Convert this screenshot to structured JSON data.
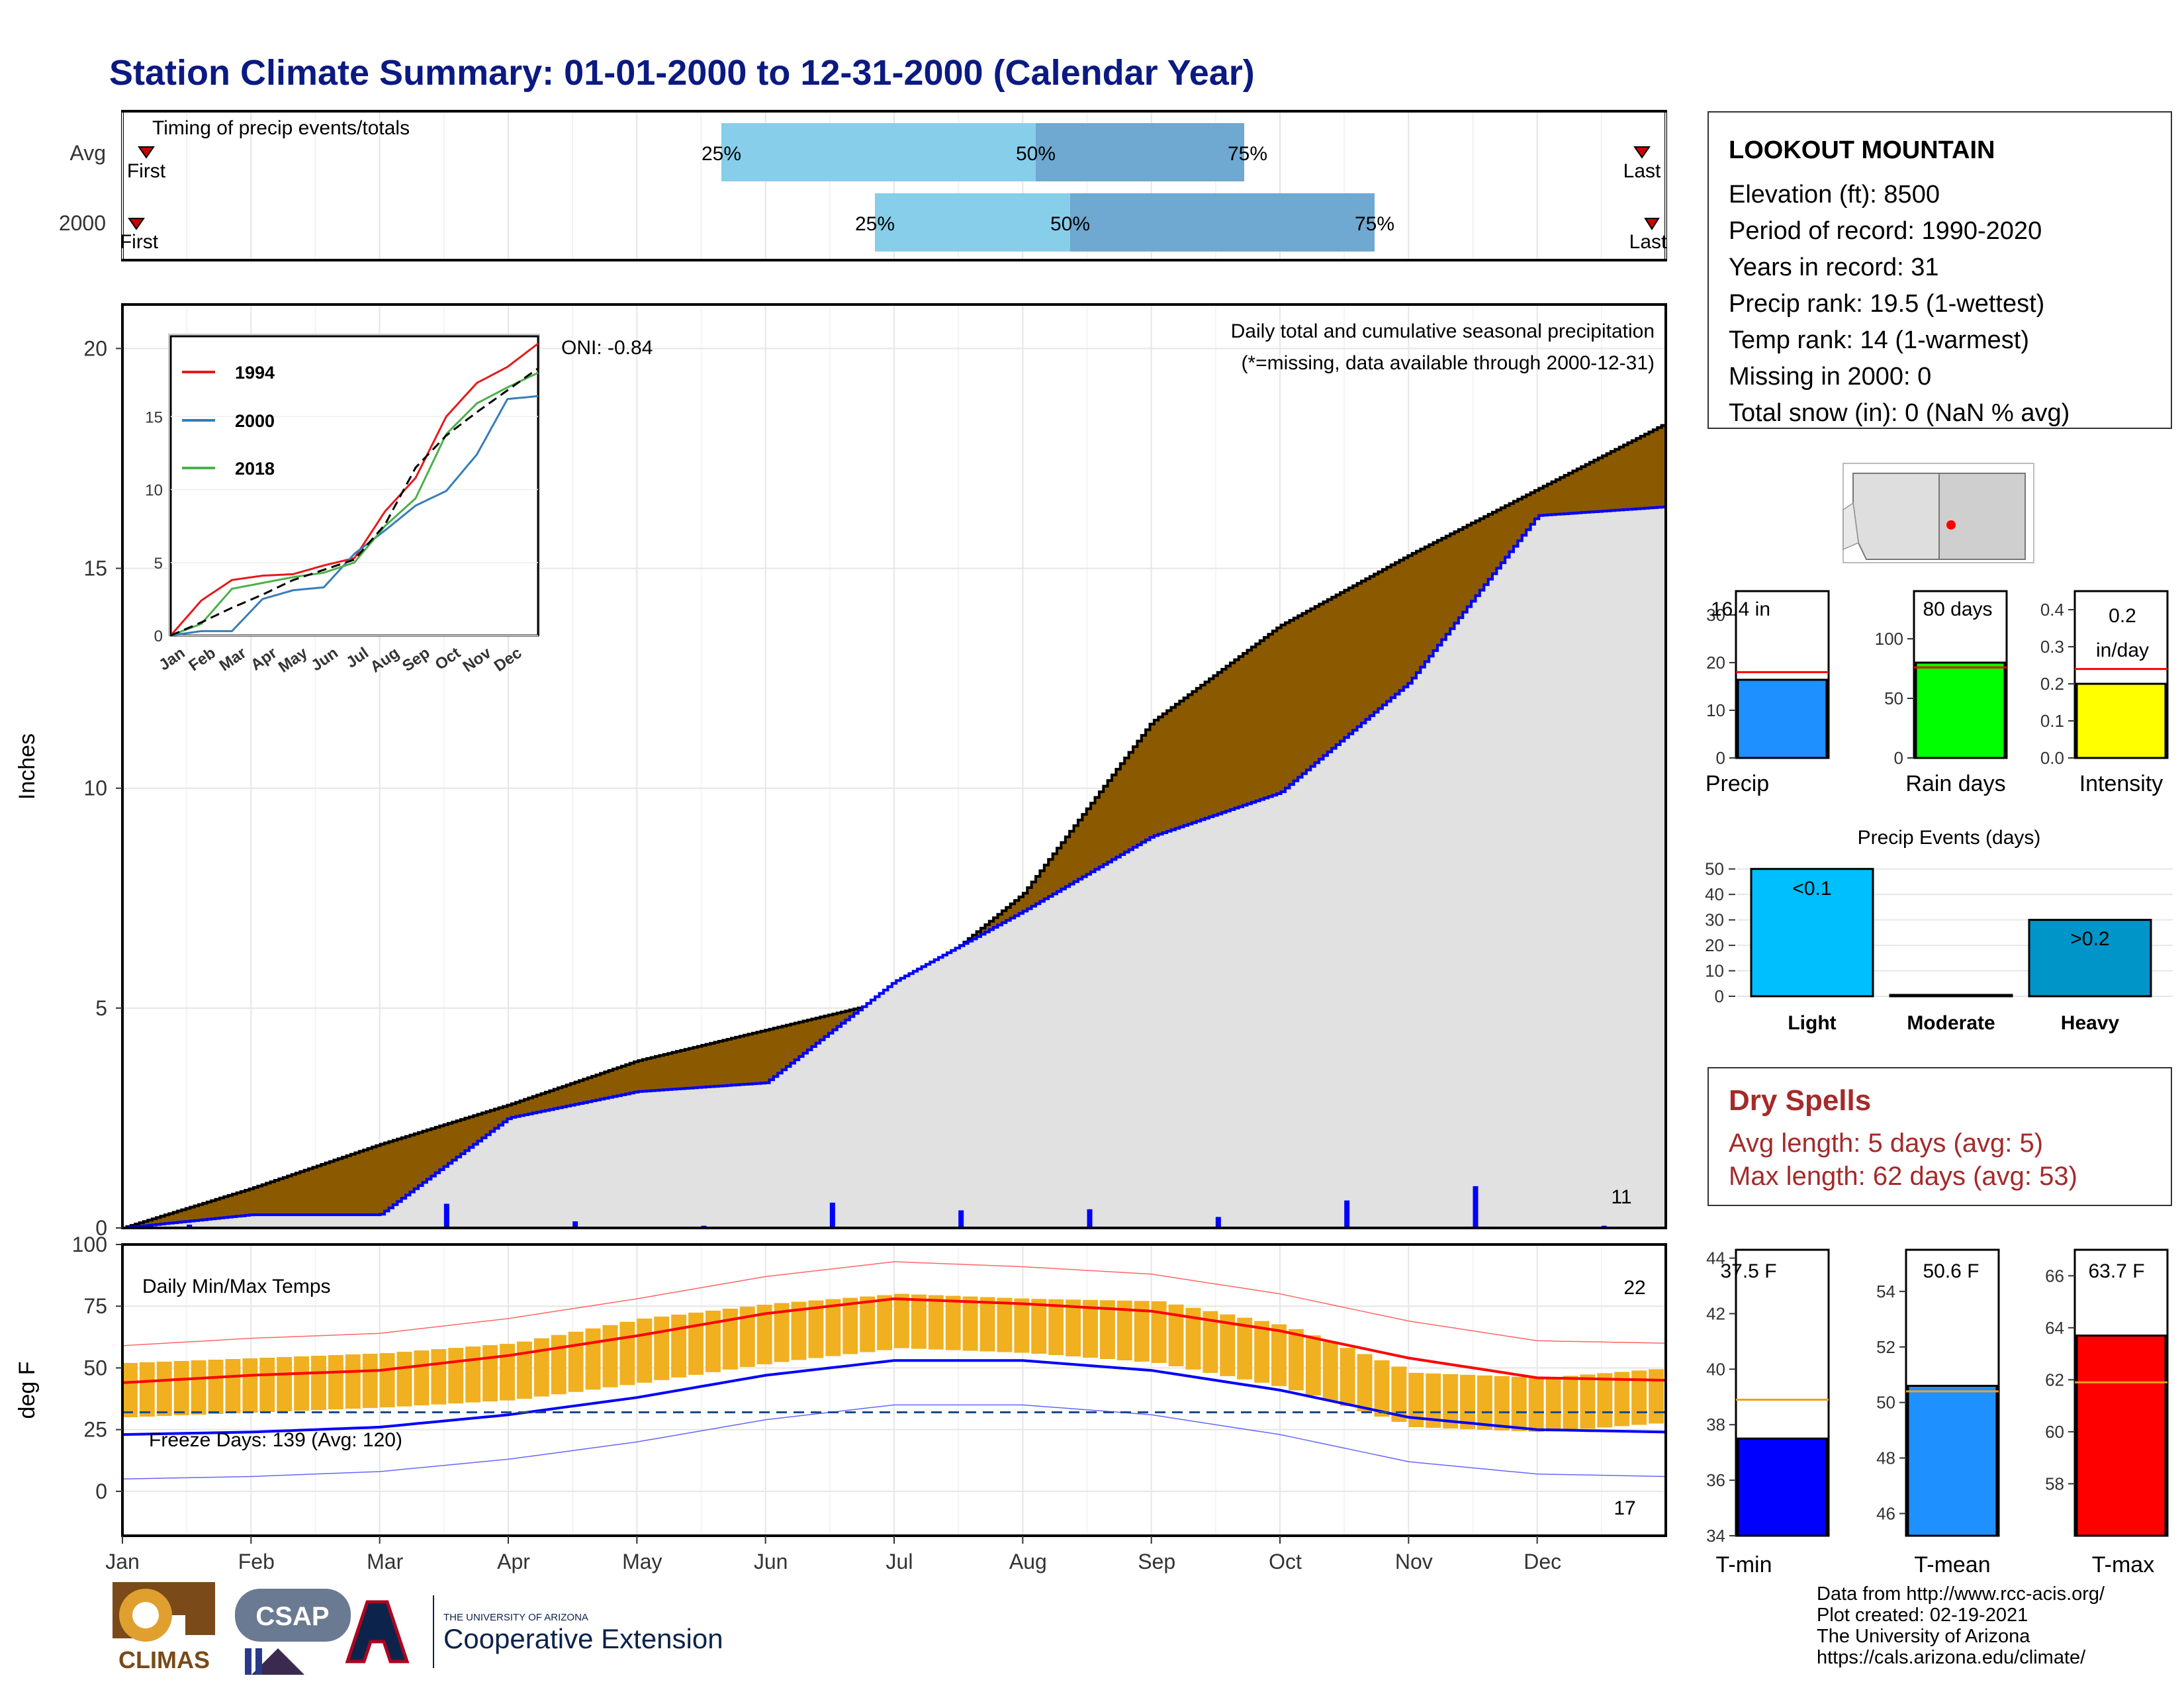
{
  "title": "Station Climate Summary: 01-01-2000 to 12-31-2000 (Calendar Year)",
  "colors": {
    "title": "#0b1a82",
    "brown": "#8b5a00",
    "blue": "#0000ff",
    "gray_fill": "#e1e1e1",
    "orange": "#f0b020",
    "red": "#ff0000",
    "light_blue": "#87ceeb",
    "mid_blue": "#6fa8d0"
  },
  "timing": {
    "label": "Timing of precip events/totals",
    "rows": [
      {
        "name": "Avg",
        "first": "First",
        "last": "Last",
        "p25": "25%",
        "p50": "50%",
        "p75": "75%"
      },
      {
        "name": "2000",
        "first": "First",
        "last": "Last",
        "p25": "25%",
        "p50": "50%",
        "p75": "75%"
      }
    ]
  },
  "station": {
    "name": "LOOKOUT MOUNTAIN",
    "lines": [
      "Elevation (ft): 8500",
      "Period of record: 1990-2020",
      "Years in record: 31",
      "Precip rank: 19.5 (1-wettest)",
      "Temp rank: 14 (1-warmest)",
      "Missing in 2000: 0",
      "Total snow (in): 0 (NaN % avg)"
    ]
  },
  "precip_panel": {
    "ylabel": "Inches",
    "title": "Daily total and cumulative seasonal precipitation",
    "subtitle": "(*=missing, data available through 2000-12-31)",
    "oni": "ONI: -0.84",
    "count_label": "11",
    "yticks": [
      "0",
      "5",
      "10",
      "15",
      "20"
    ]
  },
  "temp_panel": {
    "ylabel": "deg F",
    "title": "Daily Min/Max Temps",
    "freeze": "Freeze Days: 139 (Avg: 120)",
    "hot_count": "22",
    "cold_count": "17",
    "yticks": [
      "0",
      "25",
      "50",
      "75",
      "100"
    ],
    "months": [
      "Jan",
      "Feb",
      "Mar",
      "Apr",
      "May",
      "Jun",
      "Jul",
      "Aug",
      "Sep",
      "Oct",
      "Nov",
      "Dec"
    ]
  },
  "inset": {
    "legend": [
      "1994",
      "2000",
      "2018"
    ],
    "yticks": [
      "0",
      "5",
      "10",
      "15"
    ],
    "months": [
      "Jan",
      "Feb",
      "Mar",
      "Apr",
      "May",
      "Jun",
      "Jul",
      "Aug",
      "Sep",
      "Oct",
      "Nov",
      "Dec"
    ]
  },
  "mini_bars": {
    "precip": {
      "label": "Precip",
      "value_label": "16.4 in",
      "yticks": [
        "0",
        "10",
        "20",
        "30"
      ]
    },
    "rain_days": {
      "label": "Rain days",
      "value_label": "80 days",
      "yticks": [
        "0",
        "50",
        "100"
      ]
    },
    "intensity": {
      "label": "Intensity",
      "value_label_1": "0.2",
      "value_label_2": "in/day",
      "yticks": [
        "0.0",
        "0.1",
        "0.2",
        "0.3",
        "0.4"
      ]
    }
  },
  "events": {
    "title": "Precip Events (days)",
    "categories": [
      "Light",
      "Moderate",
      "Heavy"
    ],
    "labels": [
      "<0.1",
      "",
      ">0.2"
    ],
    "yticks": [
      "0",
      "10",
      "20",
      "30",
      "40",
      "50"
    ]
  },
  "dry_spells": {
    "title": "Dry Spells",
    "avg": "Avg length: 5 days (avg: 5)",
    "max": "Max length: 62 days (avg: 53)"
  },
  "temp_bars": {
    "tmin": {
      "label": "T-min",
      "value_label": "37.5 F",
      "yticks": [
        "34",
        "36",
        "38",
        "40",
        "42",
        "44"
      ]
    },
    "tmean": {
      "label": "T-mean",
      "value_label": "50.6 F",
      "yticks": [
        "46",
        "48",
        "50",
        "52",
        "54"
      ]
    },
    "tmax": {
      "label": "T-max",
      "value_label": "63.7 F",
      "yticks": [
        "58",
        "60",
        "62",
        "64",
        "66"
      ]
    }
  },
  "credits": [
    "Data from http://www.rcc-acis.org/",
    "Plot created: 02-19-2021",
    "The University of Arizona",
    "https://cals.arizona.edu/climate/"
  ],
  "logos": {
    "climas": "CLIMAS",
    "csap": "CSAP",
    "ua_small": "THE UNIVERSITY OF ARIZONA",
    "ua_big": "Cooperative Extension"
  },
  "chart_data": [
    {
      "type": "area",
      "title": "Daily total and cumulative seasonal precipitation",
      "ylabel": "Inches",
      "ylim": [
        0,
        21
      ],
      "x": [
        "Jan",
        "Feb",
        "Mar",
        "Apr",
        "May",
        "Jun",
        "Jul",
        "Aug",
        "Sep",
        "Oct",
        "Nov",
        "Dec",
        "Dec-31"
      ],
      "series": [
        {
          "name": "Avg",
          "values": [
            0,
            0.9,
            1.9,
            2.8,
            3.8,
            4.5,
            5.2,
            7.6,
            11.5,
            13.7,
            15.3,
            16.8,
            18.3
          ]
        },
        {
          "name": "2000",
          "values": [
            0,
            0.3,
            0.3,
            2.5,
            3.1,
            3.3,
            5.6,
            7.2,
            8.9,
            9.9,
            12.4,
            16.2,
            16.4
          ]
        }
      ]
    },
    {
      "type": "line",
      "title": "Daily Min/Max Temps",
      "ylabel": "deg F",
      "ylim": [
        -18,
        100
      ],
      "x": [
        "Jan",
        "Feb",
        "Mar",
        "Apr",
        "May",
        "Jun",
        "Jul",
        "Aug",
        "Sep",
        "Oct",
        "Nov",
        "Dec",
        "Dec-31"
      ],
      "series": [
        {
          "name": "Avg max",
          "values": [
            44,
            47,
            49,
            55,
            63,
            72,
            78,
            76,
            73,
            65,
            54,
            46,
            45
          ]
        },
        {
          "name": "Avg min",
          "values": [
            23,
            24,
            26,
            31,
            38,
            47,
            53,
            53,
            49,
            41,
            30,
            25,
            24
          ]
        },
        {
          "name": "2000 max",
          "values": [
            48,
            50,
            52,
            56,
            66,
            72,
            76,
            74,
            73,
            63,
            44,
            42,
            46
          ]
        },
        {
          "name": "2000 min",
          "values": [
            26,
            28,
            30,
            33,
            40,
            48,
            54,
            52,
            48,
            38,
            22,
            20,
            24
          ]
        }
      ]
    },
    {
      "type": "line",
      "x": [
        "Jan",
        "Feb",
        "Mar",
        "Apr",
        "May",
        "Jun",
        "Jul",
        "Aug",
        "Sep",
        "Oct",
        "Nov",
        "Dec",
        "Dec-31"
      ],
      "ylim": [
        0,
        20
      ],
      "series": [
        {
          "name": "1994",
          "values": [
            0,
            2.4,
            3.8,
            4.1,
            4.2,
            4.8,
            5.3,
            8.5,
            10.8,
            15.0,
            17.3,
            18.4,
            20
          ]
        },
        {
          "name": "2000",
          "values": [
            0,
            0.3,
            0.3,
            2.5,
            3.1,
            3.3,
            5.6,
            7.2,
            8.9,
            9.9,
            12.4,
            16.2,
            16.4
          ]
        },
        {
          "name": "2018",
          "values": [
            0,
            0.8,
            3.2,
            3.6,
            4.0,
            4.3,
            5.0,
            7.5,
            9.4,
            13.8,
            15.9,
            17.0,
            18.0
          ]
        },
        {
          "name": "Avg",
          "values": [
            0,
            0.9,
            1.9,
            2.8,
            3.8,
            4.5,
            5.2,
            7.6,
            11.5,
            13.7,
            15.3,
            16.8,
            18.3
          ]
        }
      ]
    },
    {
      "type": "bar",
      "categories": [
        "Precip",
        "Rain days",
        "Intensity"
      ],
      "values": [
        16.4,
        80,
        0.2
      ],
      "avg": [
        18,
        76,
        0.24
      ],
      "ylim": [
        [
          0,
          35
        ],
        [
          0,
          140
        ],
        [
          0,
          0.45
        ]
      ]
    },
    {
      "type": "bar",
      "title": "Precip Events (days)",
      "categories": [
        "Light",
        "Moderate",
        "Heavy"
      ],
      "values": [
        50,
        0,
        30
      ],
      "ylim": [
        0,
        52
      ]
    },
    {
      "type": "bar",
      "categories": [
        "T-min",
        "T-mean",
        "T-max"
      ],
      "values": [
        37.5,
        50.6,
        63.7
      ],
      "avg": [
        38.9,
        50.4,
        61.9
      ],
      "ylim": [
        [
          34,
          44.3
        ],
        [
          45.2,
          55.5
        ],
        [
          56,
          67
        ]
      ]
    }
  ]
}
